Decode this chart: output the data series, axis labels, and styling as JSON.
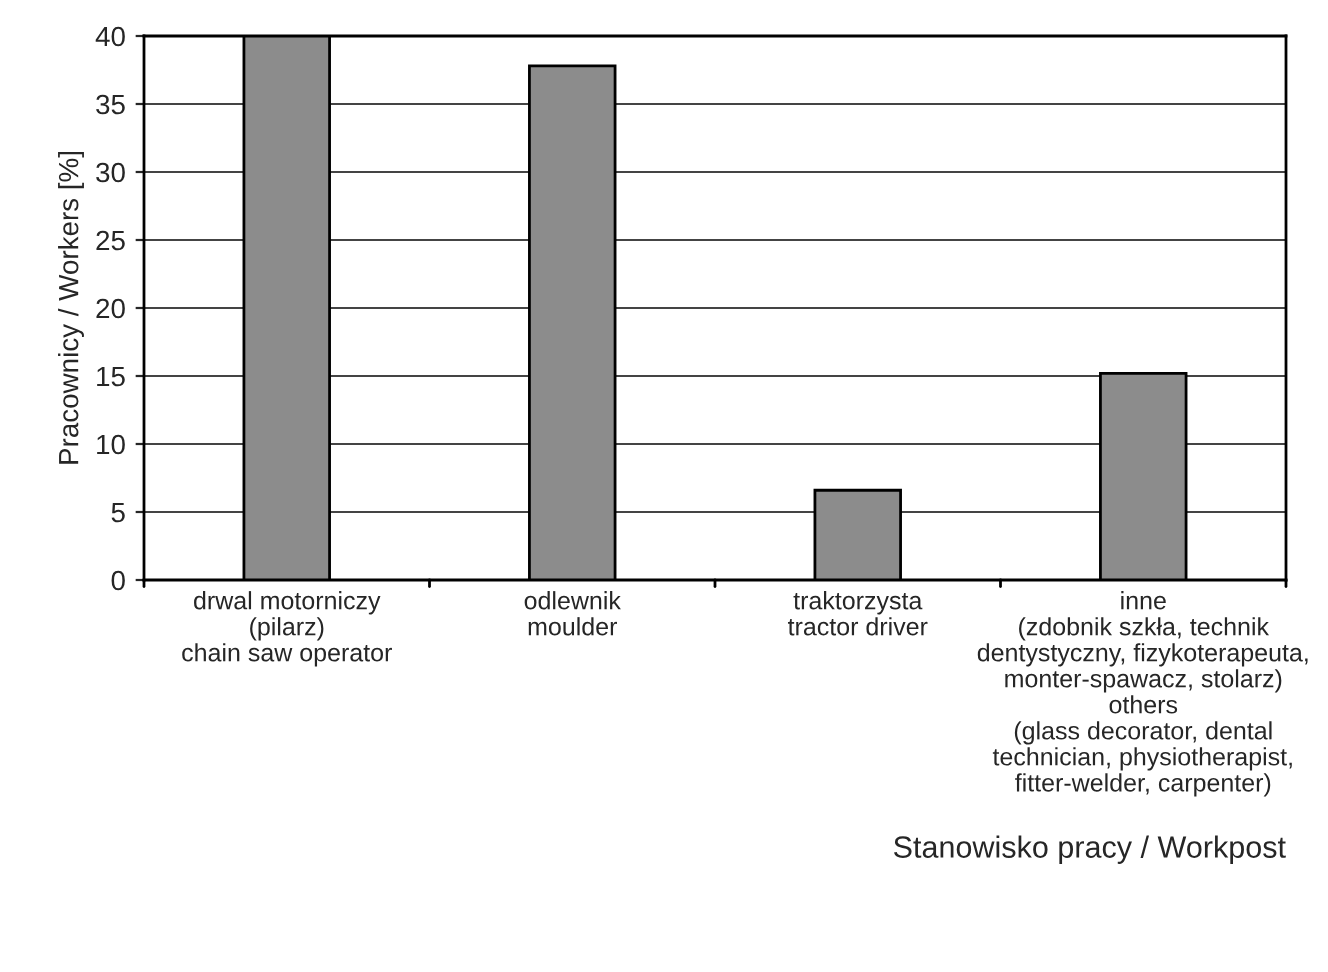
{
  "chart_data": {
    "type": "bar",
    "xlabel": "Stanowisko pracy / Workpost",
    "ylabel": "Pracownicy / Workers [%]",
    "categories": [
      "drwal motorniczy\n(pilarz)\nchain saw operator",
      "odlewnik\nmoulder",
      "traktorzysta\ntractor driver",
      "inne\n(zdobnik szkła, technik\ndentystyczny, fizykoterapeuta,\nmonter-spawacz, stolarz)\nothers\n(glass decorator, dental\ntechnician, physiotherapist,\nfitter-welder, carpenter)"
    ],
    "values": [
      40,
      37.8,
      6.6,
      15.2
    ],
    "color": "#8c8c8c",
    "ylim": [
      0,
      40
    ],
    "yticks": [
      0,
      5,
      10,
      15,
      20,
      25,
      30,
      35,
      40
    ],
    "grid": "y"
  }
}
